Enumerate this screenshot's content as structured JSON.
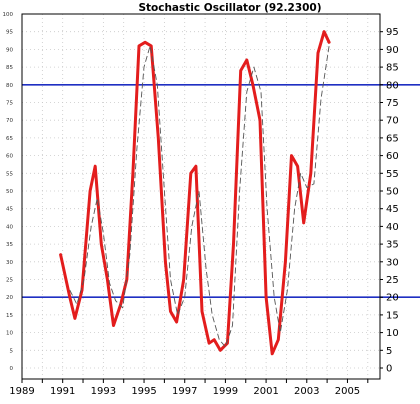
{
  "chart_data": {
    "type": "line",
    "title": "Stochastic Oscillator (92.2300)",
    "xlabel": "",
    "ylabel": "",
    "xlim": [
      1989.0,
      2006.6
    ],
    "ylim": [
      0,
      100
    ],
    "grid": true,
    "x_tick_labels": [
      "1989",
      "1991",
      "1993",
      "1995",
      "1997",
      "1999",
      "2001",
      "2003",
      "2005"
    ],
    "y_ticks_left": [
      0,
      5,
      10,
      15,
      20,
      25,
      30,
      35,
      40,
      45,
      50,
      55,
      60,
      65,
      70,
      75,
      80,
      85,
      90,
      95,
      100
    ],
    "y_ticks_right": [
      0,
      5,
      10,
      15,
      20,
      25,
      30,
      35,
      40,
      45,
      50,
      55,
      60,
      65,
      70,
      75,
      80,
      85,
      90,
      95
    ],
    "reference_lines": [
      80,
      20
    ],
    "colors": {
      "main_line": "#e31d1d",
      "signal_line": "#555555",
      "reference_line": "#1f2fc2",
      "grid": "#c8c8c8",
      "axis": "#000000"
    },
    "series": [
      {
        "style": "solid",
        "x": [
          1990.9,
          1991.35,
          1991.6,
          1991.95,
          1992.35,
          1992.6,
          1992.9,
          1993.2,
          1993.5,
          1993.85,
          1994.15,
          1994.45,
          1994.75,
          1995.05,
          1995.35,
          1995.7,
          1996.05,
          1996.3,
          1996.6,
          1996.95,
          1997.3,
          1997.55,
          1997.85,
          1998.2,
          1998.45,
          1998.75,
          1999.1,
          1999.4,
          1999.75,
          2000.05,
          2000.35,
          2000.7,
          2001.0,
          2001.3,
          2001.6,
          2001.95,
          2002.25,
          2002.55,
          2002.85,
          2003.2,
          2003.55,
          2003.85,
          2004.1
        ],
        "y": [
          32,
          20,
          14,
          22,
          50,
          57,
          35,
          25,
          12,
          18,
          25,
          55,
          91,
          92,
          91,
          65,
          30,
          16,
          13,
          25,
          55,
          57,
          16,
          7,
          8,
          5,
          7,
          35,
          84,
          87,
          80,
          70,
          20,
          4,
          8,
          30,
          60,
          57,
          41,
          55,
          89,
          95,
          92
        ]
      },
      {
        "style": "dashed",
        "x": [
          1991.35,
          1991.7,
          1992.05,
          1992.4,
          1992.7,
          1993.0,
          1993.3,
          1993.6,
          1993.95,
          1994.3,
          1994.65,
          1995.0,
          1995.3,
          1995.65,
          1996.0,
          1996.3,
          1996.65,
          1997.0,
          1997.35,
          1997.7,
          1998.05,
          1998.35,
          1998.7,
          1999.0,
          1999.35,
          1999.7,
          2000.05,
          2000.4,
          2000.75,
          2001.05,
          2001.4,
          2001.7,
          2002.05,
          2002.4,
          2002.7,
          2003.0,
          2003.35,
          2003.7,
          2004.1
        ],
        "y": [
          22,
          18,
          25,
          40,
          48,
          38,
          24,
          19,
          17,
          32,
          62,
          85,
          91,
          80,
          50,
          25,
          15,
          20,
          40,
          50,
          28,
          15,
          8,
          6,
          12,
          50,
          78,
          85,
          78,
          45,
          20,
          10,
          22,
          45,
          55,
          51,
          52,
          76,
          91
        ]
      }
    ]
  }
}
